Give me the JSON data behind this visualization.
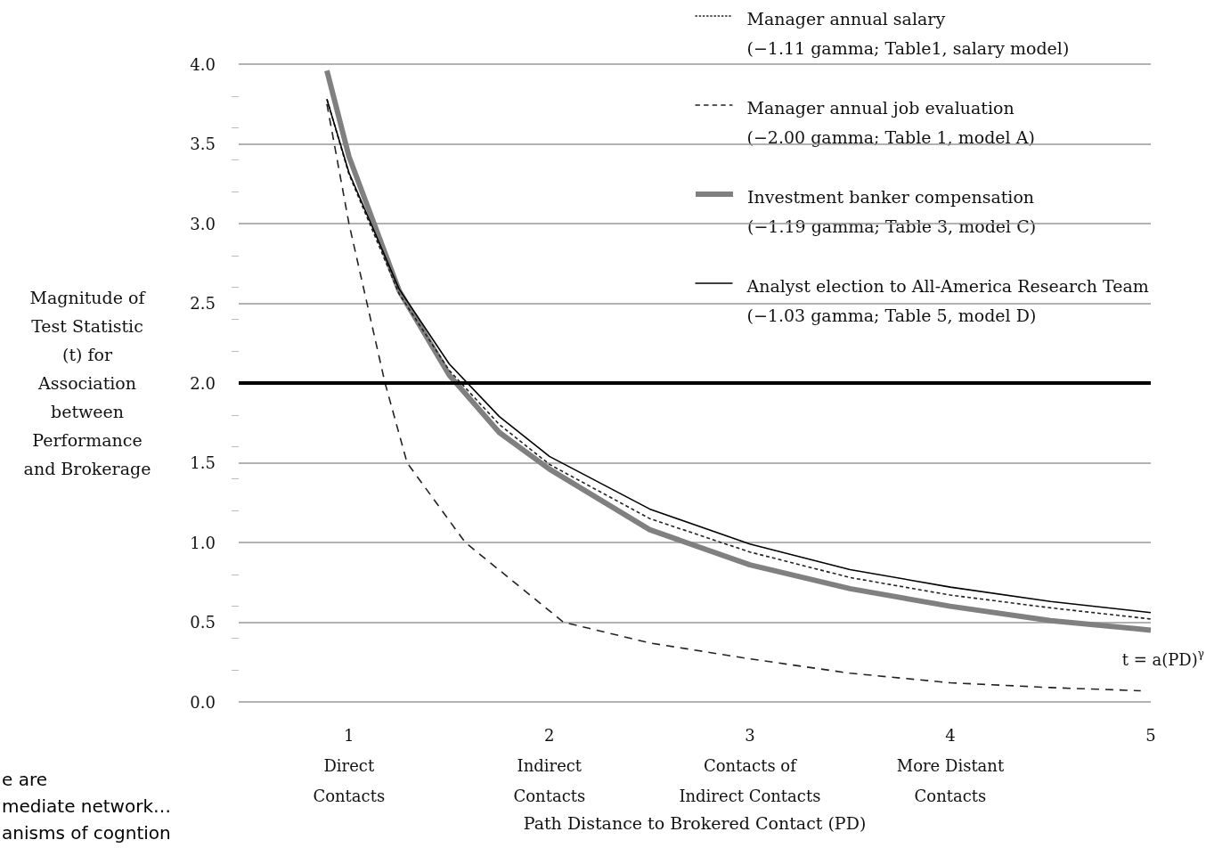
{
  "chart_data": {
    "type": "line",
    "xlabel": "Path Distance to Brokered Contact (PD)",
    "ylabel": "Magnitude of\nTest Statistic\n(t) for\nAssociation\nbetween\nPerformance\nand Brokerage",
    "xlim": [
      0.45,
      5.0
    ],
    "xticks": [
      {
        "value": 1,
        "label": "1\nDirect\nContacts"
      },
      {
        "value": 2,
        "label": "2\nIndirect\nContacts"
      },
      {
        "value": 3,
        "label": "3\nContacts of\nIndirect Contacts"
      },
      {
        "value": 4,
        "label": "4\nMore Distant\nContacts"
      },
      {
        "value": 5,
        "label": "5"
      }
    ],
    "ylim": [
      0,
      4
    ],
    "yticks": [
      {
        "value": 0,
        "label": "0.0"
      },
      0.5,
      {
        "value": 1,
        "label": "1.0"
      },
      1.5,
      {
        "value": 2,
        "label": "2.0"
      },
      2.5,
      {
        "value": 3,
        "label": "3.0"
      },
      3.5,
      {
        "value": 4,
        "label": "4.0"
      }
    ],
    "grid": "y",
    "legend": "top right",
    "marker": "none",
    "series": [
      {
        "name": "Manager annual salary\n(−1.11 gamma; Table1, salary model)",
        "color": "#222222",
        "line_style": "dotted",
        "x": [
          0.89,
          1,
          1.25,
          1.5,
          1.75,
          2,
          2.5,
          3,
          3.5,
          4,
          4.5,
          5
        ],
        "values": [
          3.78,
          3.31,
          2.56,
          2.08,
          1.74,
          1.49,
          1.15,
          0.94,
          0.78,
          0.67,
          0.59,
          0.52
        ]
      },
      {
        "name": "Manager annual job evaluation\n(−2.00 gamma; Table 1, model A)",
        "color": "#222222",
        "line_style": "dashed",
        "x": [
          0.89,
          1.0,
          1.18,
          1.29,
          1.58,
          2.07,
          2.5,
          3,
          3.5,
          4,
          4.5,
          4.95
        ],
        "values": [
          3.75,
          3.0,
          2.0,
          1.5,
          1.0,
          0.5,
          0.37,
          0.27,
          0.18,
          0.12,
          0.09,
          0.07
        ]
      },
      {
        "name": "Investment banker compensation\n(−1.19 gamma; Table 3, model C)",
        "color": "#808080",
        "line_style": "solid",
        "x": [
          0.89,
          1,
          1.25,
          1.5,
          1.75,
          2,
          2.5,
          3,
          3.5,
          4,
          4.5,
          5
        ],
        "values": [
          3.96,
          3.42,
          2.58,
          2.05,
          1.69,
          1.46,
          1.08,
          0.86,
          0.71,
          0.6,
          0.51,
          0.45
        ]
      },
      {
        "name": "Analyst election to All-America Research Team\n(−1.03 gamma; Table 5, model D)",
        "color": "#000000",
        "line_style": "solid",
        "x": [
          0.89,
          1,
          1.25,
          1.5,
          1.75,
          2,
          2.5,
          3,
          3.5,
          4,
          4.5,
          5
        ],
        "values": [
          3.78,
          3.32,
          2.59,
          2.12,
          1.79,
          1.54,
          1.21,
          0.99,
          0.83,
          0.72,
          0.63,
          0.56
        ]
      }
    ],
    "ref_lines": [
      {
        "axis": "y",
        "value": 2,
        "label": null,
        "color": "#000000",
        "line_style": "solid"
      }
    ],
    "annotations": [
      "t = a(PD)$^{γ}$",
      "e are\nmediate network…\nanisms of cogntion"
    ]
  }
}
